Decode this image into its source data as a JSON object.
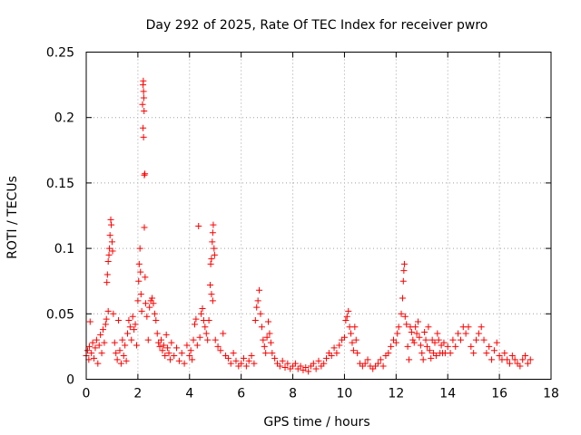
{
  "chart_data": {
    "type": "scatter",
    "title": "Day 292 of 2025, Rate Of TEC Index for receiver pwro",
    "xlabel": "GPS time / hours",
    "ylabel": "ROTI / TECUs",
    "xlim": [
      0,
      18
    ],
    "ylim": [
      0,
      0.25
    ],
    "x_ticks": [
      0,
      2,
      4,
      6,
      8,
      10,
      12,
      14,
      16,
      18
    ],
    "y_ticks": [
      0,
      0.05,
      0.1,
      0.15,
      0.2,
      0.25
    ],
    "x_tick_labels": [
      "0",
      "2",
      "4",
      "6",
      "8",
      "10",
      "12",
      "14",
      "16",
      "18"
    ],
    "y_tick_labels": [
      "0",
      "0.05",
      "0.1",
      "0.15",
      "0.2",
      "0.25"
    ],
    "grid": true,
    "marker": "+",
    "marker_color": "#ff0000",
    "series": [
      {
        "points": [
          [
            0.0,
            0.018
          ],
          [
            0.05,
            0.022
          ],
          [
            0.1,
            0.015
          ],
          [
            0.12,
            0.025
          ],
          [
            0.15,
            0.044
          ],
          [
            0.2,
            0.02
          ],
          [
            0.25,
            0.028
          ],
          [
            0.3,
            0.016
          ],
          [
            0.35,
            0.024
          ],
          [
            0.4,
            0.03
          ],
          [
            0.45,
            0.012
          ],
          [
            0.5,
            0.026
          ],
          [
            0.55,
            0.034
          ],
          [
            0.6,
            0.02
          ],
          [
            0.65,
            0.038
          ],
          [
            0.7,
            0.028
          ],
          [
            0.75,
            0.042
          ],
          [
            0.8,
            0.074
          ],
          [
            0.82,
            0.08
          ],
          [
            0.85,
            0.09
          ],
          [
            0.88,
            0.095
          ],
          [
            0.9,
            0.1
          ],
          [
            0.92,
            0.11
          ],
          [
            0.95,
            0.122
          ],
          [
            0.97,
            0.118
          ],
          [
            1.0,
            0.105
          ],
          [
            1.02,
            0.098
          ],
          [
            1.05,
            0.05
          ],
          [
            0.78,
            0.046
          ],
          [
            0.85,
            0.052
          ],
          [
            1.1,
            0.028
          ],
          [
            1.15,
            0.02
          ],
          [
            1.2,
            0.015
          ],
          [
            1.25,
            0.045
          ],
          [
            1.3,
            0.022
          ],
          [
            1.35,
            0.012
          ],
          [
            1.4,
            0.03
          ],
          [
            1.45,
            0.018
          ],
          [
            1.5,
            0.026
          ],
          [
            1.55,
            0.014
          ],
          [
            1.6,
            0.035
          ],
          [
            1.65,
            0.045
          ],
          [
            1.7,
            0.04
          ],
          [
            1.75,
            0.03
          ],
          [
            1.8,
            0.048
          ],
          [
            1.85,
            0.038
          ],
          [
            1.9,
            0.042
          ],
          [
            1.95,
            0.026
          ],
          [
            2.0,
            0.06
          ],
          [
            2.03,
            0.075
          ],
          [
            2.05,
            0.088
          ],
          [
            2.08,
            0.1
          ],
          [
            2.1,
            0.082
          ],
          [
            2.12,
            0.065
          ],
          [
            2.15,
            0.052
          ],
          [
            2.18,
            0.21
          ],
          [
            2.2,
            0.225
          ],
          [
            2.21,
            0.228
          ],
          [
            2.22,
            0.22
          ],
          [
            2.23,
            0.215
          ],
          [
            2.24,
            0.205
          ],
          [
            2.2,
            0.192
          ],
          [
            2.22,
            0.185
          ],
          [
            2.25,
            0.156
          ],
          [
            2.27,
            0.157
          ],
          [
            2.25,
            0.116
          ],
          [
            2.28,
            0.078
          ],
          [
            2.3,
            0.058
          ],
          [
            2.35,
            0.048
          ],
          [
            2.4,
            0.03
          ],
          [
            2.45,
            0.055
          ],
          [
            2.5,
            0.06
          ],
          [
            2.55,
            0.062
          ],
          [
            2.6,
            0.058
          ],
          [
            2.65,
            0.05
          ],
          [
            2.7,
            0.045
          ],
          [
            2.75,
            0.035
          ],
          [
            2.8,
            0.028
          ],
          [
            2.85,
            0.025
          ],
          [
            2.9,
            0.03
          ],
          [
            2.95,
            0.022
          ],
          [
            3.0,
            0.026
          ],
          [
            3.05,
            0.018
          ],
          [
            3.1,
            0.034
          ],
          [
            3.15,
            0.024
          ],
          [
            3.2,
            0.02
          ],
          [
            3.25,
            0.015
          ],
          [
            3.3,
            0.028
          ],
          [
            3.4,
            0.018
          ],
          [
            3.5,
            0.024
          ],
          [
            3.6,
            0.014
          ],
          [
            3.7,
            0.02
          ],
          [
            3.8,
            0.012
          ],
          [
            3.9,
            0.026
          ],
          [
            4.0,
            0.018
          ],
          [
            4.05,
            0.022
          ],
          [
            4.1,
            0.015
          ],
          [
            4.15,
            0.03
          ],
          [
            4.2,
            0.042
          ],
          [
            4.25,
            0.046
          ],
          [
            4.3,
            0.026
          ],
          [
            4.35,
            0.117
          ],
          [
            4.4,
            0.032
          ],
          [
            4.45,
            0.05
          ],
          [
            4.5,
            0.054
          ],
          [
            4.55,
            0.045
          ],
          [
            4.6,
            0.04
          ],
          [
            4.65,
            0.035
          ],
          [
            4.7,
            0.03
          ],
          [
            4.75,
            0.045
          ],
          [
            4.8,
            0.072
          ],
          [
            4.82,
            0.088
          ],
          [
            4.85,
            0.092
          ],
          [
            4.88,
            0.105
          ],
          [
            4.9,
            0.112
          ],
          [
            4.92,
            0.118
          ],
          [
            4.95,
            0.1
          ],
          [
            4.97,
            0.095
          ],
          [
            4.85,
            0.065
          ],
          [
            4.9,
            0.06
          ],
          [
            5.0,
            0.03
          ],
          [
            5.1,
            0.025
          ],
          [
            5.2,
            0.022
          ],
          [
            5.3,
            0.035
          ],
          [
            5.4,
            0.018
          ],
          [
            5.5,
            0.016
          ],
          [
            5.6,
            0.012
          ],
          [
            5.7,
            0.02
          ],
          [
            5.8,
            0.014
          ],
          [
            5.9,
            0.01
          ],
          [
            6.0,
            0.012
          ],
          [
            6.1,
            0.016
          ],
          [
            6.2,
            0.01
          ],
          [
            6.3,
            0.014
          ],
          [
            6.4,
            0.018
          ],
          [
            6.5,
            0.012
          ],
          [
            6.55,
            0.045
          ],
          [
            6.6,
            0.055
          ],
          [
            6.65,
            0.06
          ],
          [
            6.7,
            0.068
          ],
          [
            6.75,
            0.05
          ],
          [
            6.8,
            0.04
          ],
          [
            6.85,
            0.03
          ],
          [
            6.9,
            0.025
          ],
          [
            6.95,
            0.02
          ],
          [
            7.0,
            0.032
          ],
          [
            7.05,
            0.044
          ],
          [
            7.1,
            0.035
          ],
          [
            7.15,
            0.028
          ],
          [
            7.2,
            0.02
          ],
          [
            7.3,
            0.016
          ],
          [
            7.4,
            0.012
          ],
          [
            7.5,
            0.01
          ],
          [
            7.6,
            0.014
          ],
          [
            7.7,
            0.009
          ],
          [
            7.8,
            0.012
          ],
          [
            7.9,
            0.008
          ],
          [
            8.0,
            0.01
          ],
          [
            8.1,
            0.012
          ],
          [
            8.2,
            0.008
          ],
          [
            8.3,
            0.01
          ],
          [
            8.4,
            0.007
          ],
          [
            8.5,
            0.009
          ],
          [
            8.6,
            0.006
          ],
          [
            8.7,
            0.01
          ],
          [
            8.8,
            0.012
          ],
          [
            8.9,
            0.008
          ],
          [
            9.0,
            0.014
          ],
          [
            9.1,
            0.01
          ],
          [
            9.2,
            0.012
          ],
          [
            9.3,
            0.016
          ],
          [
            9.4,
            0.02
          ],
          [
            9.5,
            0.018
          ],
          [
            9.6,
            0.024
          ],
          [
            9.7,
            0.02
          ],
          [
            9.8,
            0.026
          ],
          [
            9.9,
            0.03
          ],
          [
            10.0,
            0.032
          ],
          [
            10.05,
            0.045
          ],
          [
            10.1,
            0.048
          ],
          [
            10.15,
            0.052
          ],
          [
            10.2,
            0.04
          ],
          [
            10.25,
            0.035
          ],
          [
            10.3,
            0.028
          ],
          [
            10.35,
            0.022
          ],
          [
            10.4,
            0.04
          ],
          [
            10.45,
            0.03
          ],
          [
            10.5,
            0.02
          ],
          [
            10.6,
            0.012
          ],
          [
            10.7,
            0.01
          ],
          [
            10.8,
            0.012
          ],
          [
            10.9,
            0.015
          ],
          [
            11.0,
            0.01
          ],
          [
            11.1,
            0.008
          ],
          [
            11.2,
            0.01
          ],
          [
            11.3,
            0.012
          ],
          [
            11.4,
            0.015
          ],
          [
            11.5,
            0.01
          ],
          [
            11.6,
            0.018
          ],
          [
            11.7,
            0.02
          ],
          [
            11.8,
            0.025
          ],
          [
            11.9,
            0.03
          ],
          [
            12.0,
            0.028
          ],
          [
            12.05,
            0.035
          ],
          [
            12.1,
            0.04
          ],
          [
            12.2,
            0.05
          ],
          [
            12.25,
            0.062
          ],
          [
            12.28,
            0.075
          ],
          [
            12.3,
            0.083
          ],
          [
            12.32,
            0.088
          ],
          [
            12.35,
            0.048
          ],
          [
            12.4,
            0.042
          ],
          [
            12.45,
            0.025
          ],
          [
            12.5,
            0.015
          ],
          [
            12.55,
            0.04
          ],
          [
            12.6,
            0.036
          ],
          [
            12.65,
            0.03
          ],
          [
            12.7,
            0.028
          ],
          [
            12.75,
            0.04
          ],
          [
            12.8,
            0.035
          ],
          [
            12.85,
            0.044
          ],
          [
            12.9,
            0.032
          ],
          [
            12.95,
            0.026
          ],
          [
            13.0,
            0.02
          ],
          [
            13.05,
            0.015
          ],
          [
            13.1,
            0.036
          ],
          [
            13.15,
            0.03
          ],
          [
            13.2,
            0.025
          ],
          [
            13.25,
            0.04
          ],
          [
            13.3,
            0.022
          ],
          [
            13.35,
            0.016
          ],
          [
            13.4,
            0.03
          ],
          [
            13.45,
            0.02
          ],
          [
            13.5,
            0.028
          ],
          [
            13.55,
            0.018
          ],
          [
            13.6,
            0.035
          ],
          [
            13.65,
            0.03
          ],
          [
            13.7,
            0.02
          ],
          [
            13.75,
            0.026
          ],
          [
            13.8,
            0.02
          ],
          [
            13.85,
            0.028
          ],
          [
            13.9,
            0.02
          ],
          [
            14.0,
            0.025
          ],
          [
            14.1,
            0.02
          ],
          [
            14.2,
            0.03
          ],
          [
            14.3,
            0.025
          ],
          [
            14.4,
            0.035
          ],
          [
            14.5,
            0.03
          ],
          [
            14.6,
            0.04
          ],
          [
            14.7,
            0.035
          ],
          [
            14.8,
            0.04
          ],
          [
            14.9,
            0.025
          ],
          [
            15.0,
            0.02
          ],
          [
            15.1,
            0.03
          ],
          [
            15.2,
            0.035
          ],
          [
            15.3,
            0.04
          ],
          [
            15.4,
            0.03
          ],
          [
            15.5,
            0.02
          ],
          [
            15.6,
            0.025
          ],
          [
            15.7,
            0.015
          ],
          [
            15.8,
            0.022
          ],
          [
            15.9,
            0.028
          ],
          [
            16.0,
            0.018
          ],
          [
            16.1,
            0.015
          ],
          [
            16.2,
            0.02
          ],
          [
            16.3,
            0.015
          ],
          [
            16.4,
            0.012
          ],
          [
            16.5,
            0.018
          ],
          [
            16.6,
            0.015
          ],
          [
            16.7,
            0.012
          ],
          [
            16.8,
            0.01
          ],
          [
            16.9,
            0.015
          ],
          [
            17.0,
            0.018
          ],
          [
            17.1,
            0.012
          ],
          [
            17.2,
            0.015
          ]
        ]
      }
    ]
  }
}
